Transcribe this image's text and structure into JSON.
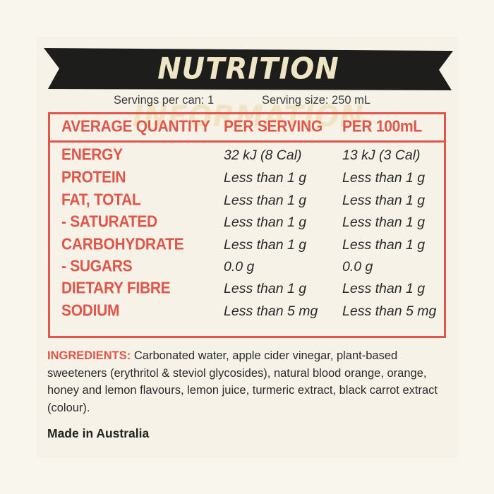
{
  "title": "NUTRITION INFORMATION",
  "servings_per_can": "Servings per can: 1",
  "serving_size": "Serving size: 250 mL",
  "headers": {
    "quantity": "AVERAGE QUANTITY",
    "per_serving": "PER SERVING",
    "per_100ml": "PER 100mL"
  },
  "rows": [
    {
      "name": "ENERGY",
      "per_serving": "32 kJ (8 Cal)",
      "per_100ml": "13 kJ (3 Cal)"
    },
    {
      "name": "PROTEIN",
      "per_serving": "Less than 1 g",
      "per_100ml": "Less than 1 g"
    },
    {
      "name": "FAT, TOTAL",
      "per_serving": "Less than 1 g",
      "per_100ml": "Less than 1 g"
    },
    {
      "name": "- SATURATED",
      "per_serving": "Less than 1 g",
      "per_100ml": "Less than 1 g"
    },
    {
      "name": "CARBOHYDRATE",
      "per_serving": "Less than 1 g",
      "per_100ml": "Less than 1 g"
    },
    {
      "name": "- SUGARS",
      "per_serving": "0.0 g",
      "per_100ml": "0.0 g"
    },
    {
      "name": "DIETARY FIBRE",
      "per_serving": "Less than 1 g",
      "per_100ml": "Less than 1 g"
    },
    {
      "name": "SODIUM",
      "per_serving": "Less than 5 mg",
      "per_100ml": "Less than 5 mg"
    }
  ],
  "ingredients": {
    "label": "INGREDIENTS:",
    "text": "Carbonated water, apple cider vinegar, plant-based sweeteners (erythritol & steviol glycosides), natural blood orange, orange, honey and lemon flavours, lemon juice, turmeric extract, black carrot extract (colour)."
  },
  "made_in": "Made in Australia",
  "colors": {
    "accent": "#e0564a",
    "banner": "#1d1d1b",
    "banner_text": "#efe5c4",
    "background": "#f6f2e8"
  }
}
